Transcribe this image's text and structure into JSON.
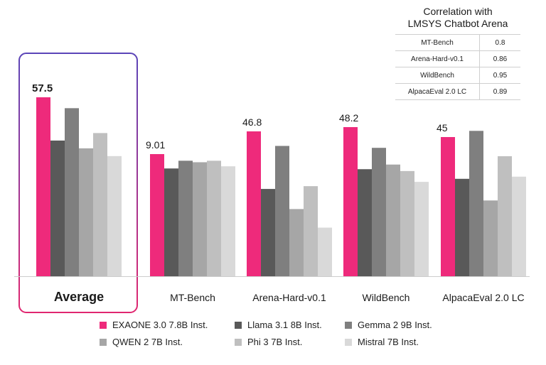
{
  "chart_data": {
    "type": "bar",
    "categories": [
      "Average",
      "MT-Bench",
      "Arena-Hard-v0.1",
      "WildBench",
      "AlpacaEval 2.0 LC"
    ],
    "highlighted_category": "Average",
    "series": [
      {
        "name": "EXAONE 3.0 7.8B Inst.",
        "color": "#ee2a7b",
        "values": [
          57.5,
          9.01,
          46.8,
          48.2,
          45
        ]
      },
      {
        "name": "Llama 3.1 8B Inst.",
        "color": "#595959",
        "values": [
          43.6,
          7.95,
          28.2,
          34.6,
          31.5
        ]
      },
      {
        "name": "Gemma 2 9B Inst.",
        "color": "#7f7f7f",
        "values": [
          54,
          8.52,
          42.1,
          41.5,
          47
        ]
      },
      {
        "name": "QWEN 2 7B Inst.",
        "color": "#a6a6a6",
        "values": [
          41.1,
          8.41,
          21.7,
          36.1,
          24.5
        ]
      },
      {
        "name": "Phi 3 7B Inst.",
        "color": "#bfbfbf",
        "values": [
          46,
          8.52,
          29.1,
          34,
          38.8
        ]
      },
      {
        "name": "Mistral 7B Inst.",
        "color": "#d9d9d9",
        "values": [
          38.6,
          8.11,
          15.7,
          30.5,
          32.2
        ]
      }
    ],
    "data_labels": [
      "57.5",
      "9.01",
      "46.8",
      "48.2",
      "45"
    ],
    "legend_position": "bottom",
    "correlation_table": {
      "title_line1": "Correlation with",
      "title_line2": "LMSYS Chatbot Arena",
      "rows": [
        {
          "metric": "MT-Bench",
          "value": "0.8"
        },
        {
          "metric": "Arena-Hard-v0.1",
          "value": "0.86"
        },
        {
          "metric": "WildBench",
          "value": "0.95"
        },
        {
          "metric": "AlpacaEval 2.0 LC",
          "value": "0.89"
        }
      ]
    }
  }
}
